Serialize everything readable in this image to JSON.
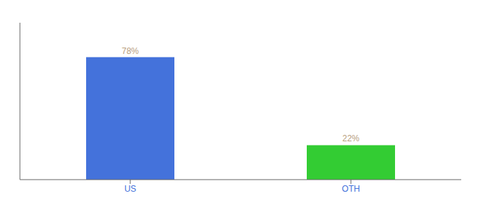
{
  "chart_data": {
    "type": "bar",
    "categories": [
      "US",
      "OTH"
    ],
    "values": [
      78,
      22
    ],
    "value_labels": [
      "78%",
      "22%"
    ],
    "colors": [
      "#4472db",
      "#33cc33"
    ],
    "ylim": [
      0,
      100
    ],
    "data_labels": true,
    "tick_labels": "x",
    "grid": false
  }
}
